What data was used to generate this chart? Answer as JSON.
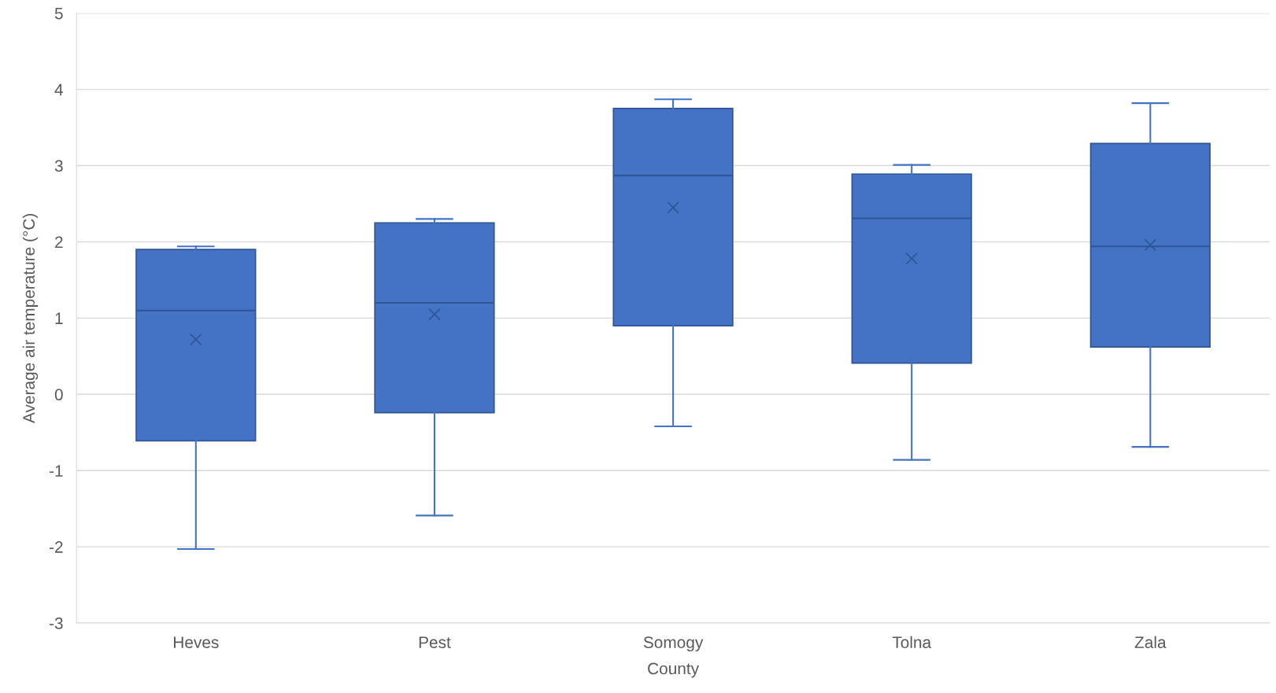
{
  "chart_data": {
    "type": "box",
    "xlabel": "County",
    "ylabel": "Average air temperature (°C)",
    "categories": [
      "Heves",
      "Pest",
      "Somogy",
      "Tolna",
      "Zala"
    ],
    "boxes": [
      {
        "low": -2.03,
        "q1": -0.61,
        "median": 1.1,
        "q3": 1.9,
        "high": 1.94,
        "mean": 0.72
      },
      {
        "low": -1.59,
        "q1": -0.24,
        "median": 1.2,
        "q3": 2.25,
        "high": 2.3,
        "mean": 1.05
      },
      {
        "low": -0.42,
        "q1": 0.9,
        "median": 2.87,
        "q3": 3.75,
        "high": 3.87,
        "mean": 2.45
      },
      {
        "low": -0.86,
        "q1": 0.41,
        "median": 2.31,
        "q3": 2.89,
        "high": 3.01,
        "mean": 1.78
      },
      {
        "low": -0.69,
        "q1": 0.62,
        "median": 1.94,
        "q3": 3.29,
        "high": 3.82,
        "mean": 1.96
      }
    ],
    "color": "#4472c4",
    "ylim": [
      -3,
      5
    ],
    "yticks": [
      -3,
      -2,
      -1,
      0,
      1,
      2,
      3,
      4,
      5
    ],
    "grid": "y",
    "marker": "cross"
  }
}
